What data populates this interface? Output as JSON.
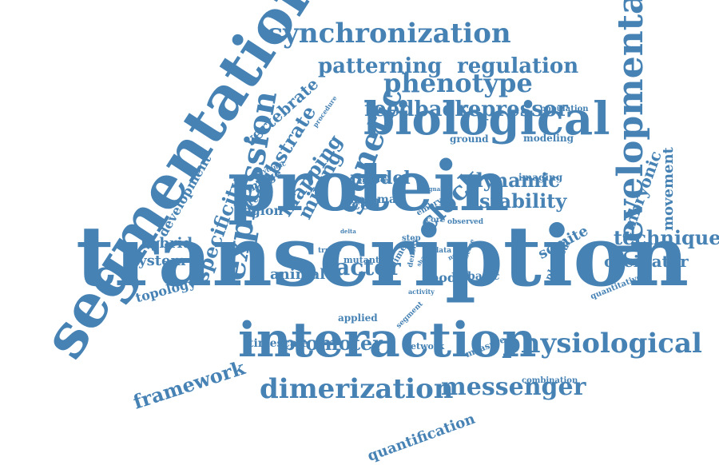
{
  "color": "#4682b4",
  "words": [
    "transcription",
    "protein",
    "segmentation",
    "interaction",
    "biological",
    "developmental",
    "genetic",
    "expression",
    "synchronization",
    "dimerization",
    "physiological",
    "phenotype",
    "clock",
    "patterning",
    "regulation",
    "feedback",
    "repressor",
    "messenger",
    "technique",
    "factor",
    "promoter",
    "framework",
    "dynamic",
    "stability",
    "specificity",
    "substrate",
    "mapping",
    "mixing",
    "model",
    "cell",
    "embryonic",
    "movement",
    "oscillator",
    "somite",
    "system",
    "hybrid",
    "topology",
    "animal",
    "region",
    "vertebrate",
    "development",
    "quantification",
    "timescale",
    "body",
    "basic",
    "loop",
    "map",
    "applied",
    "image",
    "circuit",
    "imaging",
    "modeling",
    "ground",
    "population",
    "physical",
    "quantitative",
    "combination",
    "network",
    "measure",
    "segment",
    "core",
    "observed",
    "data",
    "novel",
    "disease",
    "step",
    "dimer",
    "density",
    "mutant",
    "activity",
    "truth",
    "embryo",
    "signal",
    "enhance",
    "rhythmic",
    "procedure",
    "delta",
    "tailbud",
    "biology",
    "shape"
  ]
}
